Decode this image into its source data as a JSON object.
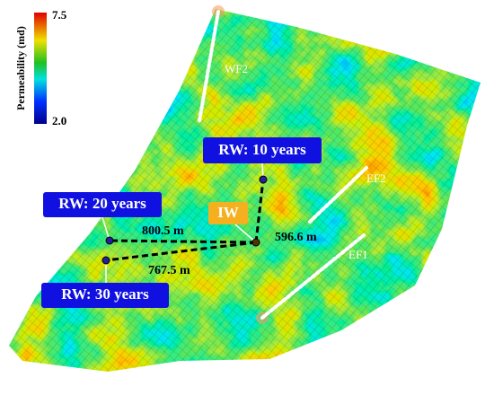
{
  "colorbar": {
    "title": "Permeability (md)",
    "max_label": "7.5",
    "min_label": "2.0"
  },
  "faults": [
    "WF2",
    "EF2",
    "EF1"
  ],
  "wells": {
    "injector": "IW",
    "rw10": "RW: 10 years",
    "rw20": "RW: 20 years",
    "rw30": "RW: 30 years"
  },
  "distances": {
    "rw20": "800.5 m",
    "rw10": "596.6 m",
    "rw30": "767.5 m"
  }
}
